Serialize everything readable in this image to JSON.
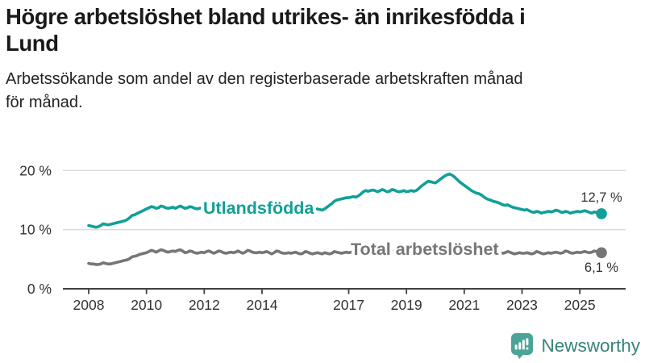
{
  "header": {
    "title": "Högre arbetslöshet bland utrikes- än inrikesfödda i Lund",
    "title_lines": [
      "Högre arbetslöshet bland utrikes- än inrikesfödda i",
      "Lund"
    ],
    "subtitle": "Arbetssökande som andel av den registerbaserade arbetskraften månad för månad.",
    "subtitle_lines": [
      "Arbetssökande som andel av den registerbaserade arbetskraften månad",
      "för månad."
    ]
  },
  "chart_data": {
    "type": "line",
    "unit": "%",
    "frequency": "monthly",
    "start": "2008-01",
    "end": "2025-10",
    "ylim": [
      0,
      21.5
    ],
    "grid": "horizontal",
    "legend_position": "inline",
    "yticks": [
      {
        "value": 0,
        "label": "0 %"
      },
      {
        "value": 10,
        "label": "10 %"
      },
      {
        "value": 20,
        "label": "20 %"
      }
    ],
    "xticks": [
      {
        "year": 2008,
        "label": "2008"
      },
      {
        "year": 2010,
        "label": "2010"
      },
      {
        "year": 2012,
        "label": "2012"
      },
      {
        "year": 2014,
        "label": "2014"
      },
      {
        "year": 2017,
        "label": "2017"
      },
      {
        "year": 2019,
        "label": "2019"
      },
      {
        "year": 2021,
        "label": "2021"
      },
      {
        "year": 2023,
        "label": "2023"
      },
      {
        "year": 2025,
        "label": "2025"
      }
    ],
    "series": [
      {
        "id": "utlandsfodda",
        "name": "Utlandsfödda",
        "color": "#11a097",
        "end_value": 12.7,
        "end_label": "12,7 %",
        "values": [
          10.7,
          10.6,
          10.5,
          10.4,
          10.5,
          10.7,
          11.0,
          10.9,
          10.8,
          10.9,
          11.0,
          11.1,
          11.2,
          11.3,
          11.4,
          11.5,
          11.7,
          12.0,
          12.4,
          12.5,
          12.7,
          12.9,
          13.1,
          13.3,
          13.5,
          13.7,
          13.9,
          13.8,
          13.6,
          13.7,
          14.0,
          13.9,
          13.7,
          13.6,
          13.7,
          13.8,
          13.6,
          13.8,
          14.0,
          13.8,
          13.6,
          13.7,
          13.9,
          13.8,
          13.6,
          13.5,
          13.6,
          13.7,
          13.4,
          13.5,
          13.6,
          13.5,
          13.3,
          13.5,
          13.7,
          13.6,
          13.4,
          13.3,
          13.4,
          13.5,
          13.3,
          13.4,
          13.6,
          13.5,
          13.3,
          13.5,
          13.8,
          13.7,
          13.5,
          13.4,
          13.5,
          13.6,
          13.5,
          13.7,
          13.8,
          13.6,
          13.4,
          13.6,
          13.8,
          13.7,
          13.5,
          13.4,
          13.5,
          13.6,
          13.4,
          13.5,
          13.7,
          13.5,
          13.3,
          13.5,
          13.7,
          13.6,
          13.4,
          13.3,
          13.4,
          13.5,
          13.4,
          13.3,
          13.5,
          13.8,
          14.1,
          14.4,
          14.8,
          15.0,
          15.1,
          15.2,
          15.3,
          15.4,
          15.4,
          15.5,
          15.6,
          15.5,
          15.7,
          16.0,
          16.4,
          16.6,
          16.5,
          16.6,
          16.7,
          16.6,
          16.4,
          16.6,
          16.8,
          16.6,
          16.4,
          16.5,
          16.8,
          16.7,
          16.5,
          16.4,
          16.5,
          16.6,
          16.4,
          16.5,
          16.6,
          16.5,
          16.6,
          16.9,
          17.3,
          17.6,
          17.9,
          18.2,
          18.1,
          18.0,
          17.9,
          18.2,
          18.5,
          18.8,
          19.1,
          19.3,
          19.4,
          19.2,
          18.9,
          18.5,
          18.1,
          17.8,
          17.5,
          17.2,
          16.9,
          16.6,
          16.4,
          16.2,
          16.1,
          15.9,
          15.6,
          15.3,
          15.1,
          15.0,
          14.8,
          14.7,
          14.6,
          14.4,
          14.2,
          14.1,
          14.2,
          14.0,
          13.8,
          13.7,
          13.6,
          13.5,
          13.4,
          13.3,
          13.4,
          13.2,
          13.0,
          12.9,
          13.1,
          13.0,
          12.8,
          12.9,
          13.0,
          13.1,
          13.0,
          13.1,
          13.3,
          13.2,
          13.0,
          12.9,
          13.1,
          13.0,
          12.8,
          12.9,
          13.0,
          13.1,
          13.0,
          13.1,
          13.2,
          13.1,
          12.9,
          12.8,
          13.0,
          12.9,
          12.7,
          12.7
        ]
      },
      {
        "id": "total-arbetsloshet",
        "name": "Total arbetslöshet",
        "color": "#767676",
        "end_value": 6.1,
        "end_label": "6,1 %",
        "values": [
          4.3,
          4.2,
          4.2,
          4.1,
          4.1,
          4.2,
          4.4,
          4.3,
          4.2,
          4.2,
          4.3,
          4.4,
          4.5,
          4.6,
          4.7,
          4.8,
          4.9,
          5.1,
          5.4,
          5.5,
          5.6,
          5.8,
          5.9,
          6.0,
          6.1,
          6.3,
          6.5,
          6.4,
          6.2,
          6.4,
          6.6,
          6.5,
          6.3,
          6.2,
          6.3,
          6.4,
          6.3,
          6.5,
          6.6,
          6.4,
          6.1,
          6.2,
          6.4,
          6.3,
          6.1,
          6.0,
          6.1,
          6.2,
          6.1,
          6.3,
          6.4,
          6.2,
          6.0,
          6.2,
          6.4,
          6.3,
          6.1,
          6.0,
          6.1,
          6.2,
          6.1,
          6.2,
          6.4,
          6.2,
          6.0,
          6.2,
          6.5,
          6.4,
          6.2,
          6.1,
          6.1,
          6.2,
          6.1,
          6.2,
          6.3,
          6.1,
          5.9,
          6.1,
          6.4,
          6.3,
          6.1,
          6.0,
          6.0,
          6.1,
          6.0,
          6.1,
          6.2,
          6.0,
          5.9,
          6.0,
          6.3,
          6.2,
          6.0,
          5.9,
          6.0,
          6.1,
          6.0,
          5.9,
          6.1,
          6.0,
          5.9,
          6.0,
          6.3,
          6.2,
          6.1,
          6.0,
          6.1,
          6.2,
          6.1,
          6.2,
          6.3,
          6.1,
          6.0,
          6.2,
          6.5,
          6.4,
          6.2,
          6.1,
          6.2,
          6.3,
          6.2,
          6.3,
          6.4,
          6.2,
          6.0,
          6.1,
          6.4,
          6.3,
          6.1,
          6.0,
          6.1,
          6.2,
          6.1,
          6.2,
          6.3,
          6.2,
          6.1,
          6.3,
          6.6,
          6.5,
          6.4,
          6.3,
          6.4,
          6.5,
          6.5,
          6.6,
          6.8,
          7.1,
          7.3,
          7.5,
          7.7,
          7.6,
          7.5,
          7.4,
          7.3,
          7.2,
          7.1,
          7.0,
          6.9,
          6.8,
          6.7,
          6.6,
          6.7,
          6.6,
          6.5,
          6.4,
          6.3,
          6.3,
          6.2,
          6.2,
          6.3,
          6.1,
          6.0,
          6.1,
          6.3,
          6.2,
          6.0,
          5.9,
          6.0,
          6.1,
          6.0,
          6.0,
          6.1,
          6.0,
          5.9,
          6.0,
          6.3,
          6.2,
          6.0,
          5.9,
          6.0,
          6.1,
          6.0,
          6.1,
          6.2,
          6.1,
          6.0,
          6.1,
          6.4,
          6.3,
          6.1,
          6.0,
          6.1,
          6.2,
          6.1,
          6.2,
          6.3,
          6.2,
          6.1,
          6.2,
          6.4,
          6.3,
          6.2,
          6.1
        ]
      }
    ]
  },
  "footer": {
    "brand": "Newsworthy",
    "brand_color": "#37837a",
    "badge_color": "#4aa49a",
    "logo_icon": "bar-chart-speech-bubble-icon"
  }
}
